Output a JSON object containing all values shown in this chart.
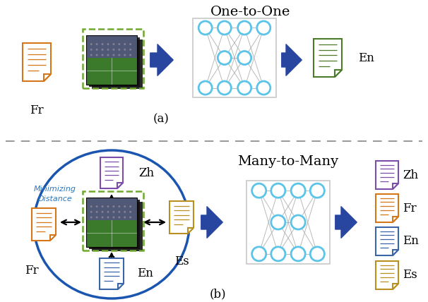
{
  "bg_color": "#ffffff",
  "top_title": "One-to-One",
  "bottom_title": "Many-to-Many",
  "label_a": "(a)",
  "label_b": "(b)",
  "orange_color": "#D4761A",
  "purple_color": "#7B4FA8",
  "blue_color": "#3A65A8",
  "gold_color": "#B89020",
  "green_color": "#4A7A2A",
  "node_color": "#5BC4E8",
  "conn_color": "#A8A8A8",
  "arrow_color": "#2845A0",
  "dashed_color": "#909090",
  "circle_color": "#1A55B0",
  "minimizing_color": "#2878C0",
  "img_border_color": "#70A830"
}
